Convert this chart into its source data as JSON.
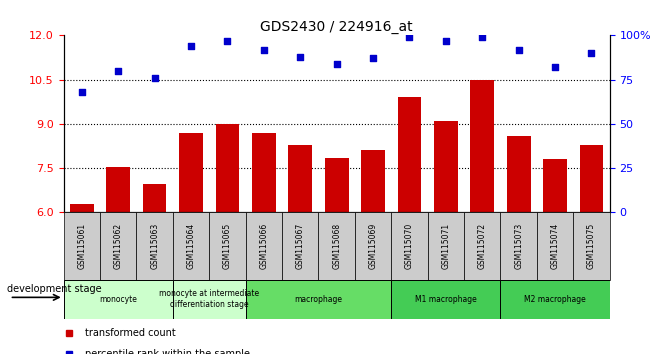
{
  "title": "GDS2430 / 224916_at",
  "samples": [
    "GSM115061",
    "GSM115062",
    "GSM115063",
    "GSM115064",
    "GSM115065",
    "GSM115066",
    "GSM115067",
    "GSM115068",
    "GSM115069",
    "GSM115070",
    "GSM115071",
    "GSM115072",
    "GSM115073",
    "GSM115074",
    "GSM115075"
  ],
  "bar_values": [
    6.3,
    7.55,
    6.95,
    8.7,
    9.0,
    8.7,
    8.3,
    7.85,
    8.1,
    9.9,
    9.1,
    10.5,
    8.6,
    7.8,
    8.3
  ],
  "dot_values": [
    68,
    80,
    76,
    94,
    97,
    92,
    88,
    84,
    87,
    99,
    97,
    99,
    92,
    82,
    90
  ],
  "bar_color": "#CC0000",
  "dot_color": "#0000CC",
  "ylim_left": [
    6,
    12
  ],
  "ylim_right": [
    0,
    100
  ],
  "yticks_left": [
    6,
    7.5,
    9,
    10.5,
    12
  ],
  "yticks_right": [
    0,
    25,
    50,
    75,
    100
  ],
  "ytick_labels_right": [
    "0",
    "25",
    "50",
    "75",
    "100%"
  ],
  "hlines": [
    7.5,
    9.0,
    10.5
  ],
  "groups": [
    {
      "label": "monocyte",
      "start": 0,
      "end": 3
    },
    {
      "label": "monocyte at intermediate\ndifferentiation stage",
      "start": 3,
      "end": 5
    },
    {
      "label": "macrophage",
      "start": 5,
      "end": 9
    },
    {
      "label": "M1 macrophage",
      "start": 9,
      "end": 12
    },
    {
      "label": "M2 macrophage",
      "start": 12,
      "end": 15
    }
  ],
  "group_colors": [
    "#ccffcc",
    "#ccffcc",
    "#66dd66",
    "#44cc55",
    "#44cc55"
  ],
  "legend_items": [
    {
      "label": "transformed count",
      "color": "#CC0000"
    },
    {
      "label": "percentile rank within the sample",
      "color": "#0000CC"
    }
  ],
  "dev_stage_label": "development stage",
  "tick_bg_color": "#cccccc"
}
